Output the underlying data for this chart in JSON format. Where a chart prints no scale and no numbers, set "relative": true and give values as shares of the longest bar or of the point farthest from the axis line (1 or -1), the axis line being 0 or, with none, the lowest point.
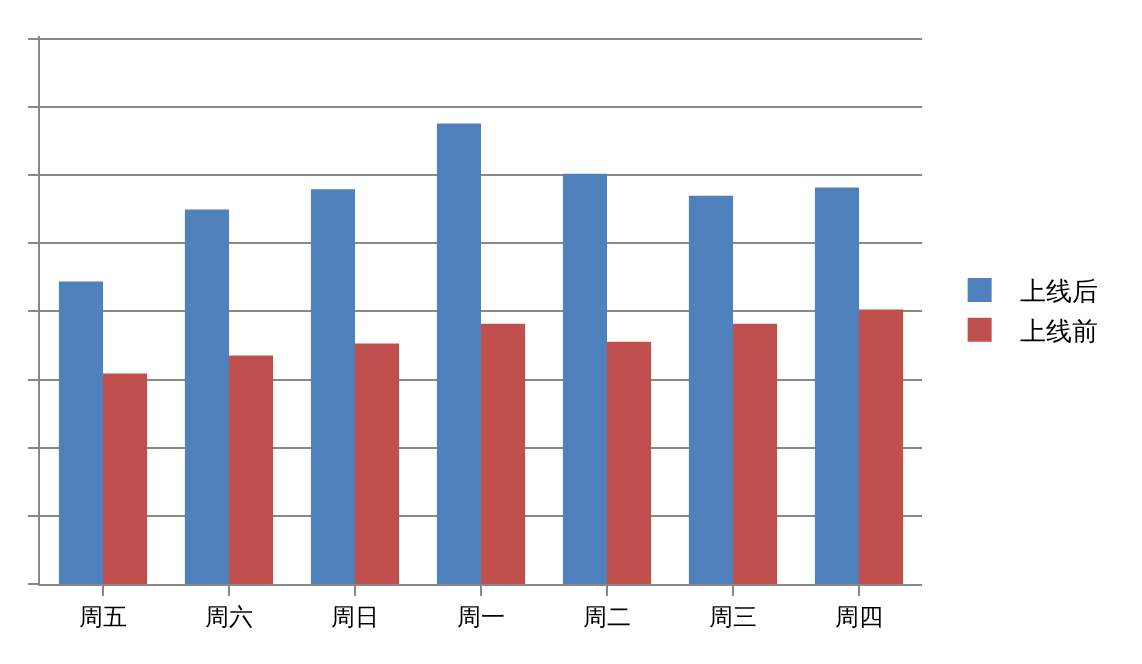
{
  "chart_data": {
    "type": "bar",
    "relative": true,
    "categories": [
      "周五",
      "周六",
      "周日",
      "周一",
      "周二",
      "周三",
      "周四"
    ],
    "series": [
      {
        "name": "上线后",
        "color": "#4f81bd",
        "values": [
          0.657,
          0.813,
          0.857,
          1,
          0.891,
          0.843,
          0.861
        ]
      },
      {
        "name": "上线前",
        "color": "#c0504d",
        "values": [
          0.457,
          0.496,
          0.522,
          0.565,
          0.526,
          0.565,
          0.596
        ]
      }
    ],
    "grid": "y",
    "legend": "right"
  }
}
